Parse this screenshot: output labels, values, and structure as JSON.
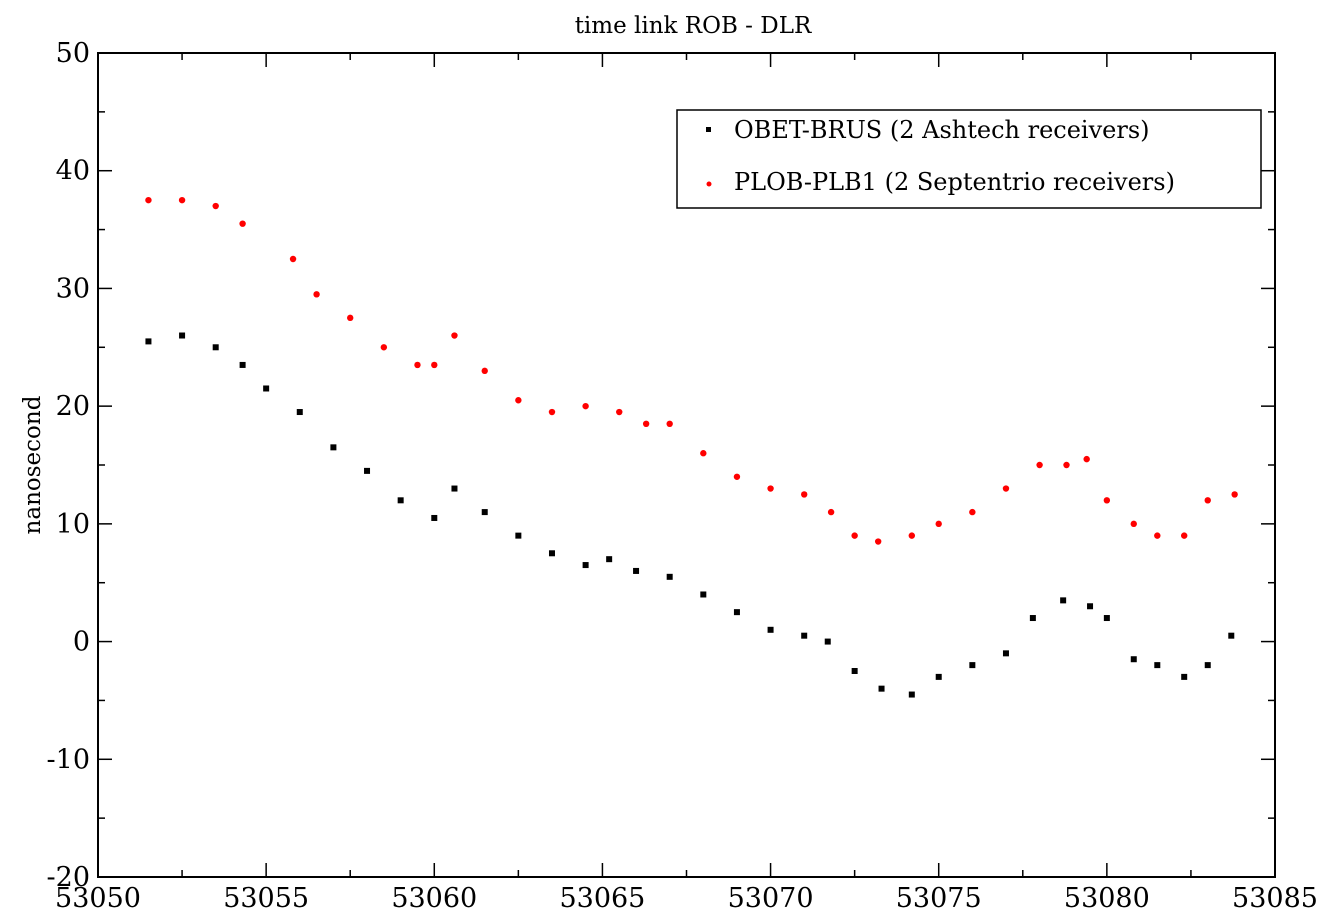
{
  "chart_data": {
    "type": "scatter",
    "title": "time link ROB - DLR",
    "xlabel": "",
    "ylabel": "nanosecond",
    "xlim": [
      53050,
      53085
    ],
    "ylim": [
      -20,
      50
    ],
    "xticks": [
      53050,
      53055,
      53060,
      53065,
      53070,
      53075,
      53080,
      53085
    ],
    "yticks": [
      -20,
      -10,
      0,
      10,
      20,
      30,
      40,
      50
    ],
    "xtick_labels": [
      "53050",
      "53055",
      "53060",
      "53065",
      "53070",
      "53075",
      "53080",
      "53085"
    ],
    "ytick_labels": [
      "-20",
      "-10",
      "0",
      "10",
      "20",
      "30",
      "40",
      "50"
    ],
    "grid": false,
    "legend_position": "top-right",
    "series": [
      {
        "name": "OBET-BRUS (2 Ashtech receivers)",
        "color": "#000000",
        "marker": "square",
        "x": [
          53051.5,
          53052.5,
          53053.5,
          53054.3,
          53055.0,
          53056.0,
          53057.0,
          53058.0,
          53059.0,
          53060.0,
          53060.6,
          53061.5,
          53062.5,
          53063.5,
          53064.5,
          53065.2,
          53066.0,
          53067.0,
          53068.0,
          53069.0,
          53070.0,
          53071.0,
          53071.7,
          53072.5,
          53073.3,
          53074.2,
          53075.0,
          53076.0,
          53077.0,
          53077.8,
          53078.7,
          53079.5,
          53080.0,
          53080.8,
          53081.5,
          53082.3,
          53083.0,
          53083.7
        ],
        "y": [
          25.5,
          26,
          25,
          23.5,
          21.5,
          19.5,
          16.5,
          14.5,
          12,
          10.5,
          13,
          11,
          9,
          7.5,
          6.5,
          7,
          6,
          5.5,
          4,
          2.5,
          1,
          0.5,
          0,
          -2.5,
          -4,
          -4.5,
          -3,
          -2,
          -1,
          2,
          3.5,
          3,
          2,
          -1.5,
          -2,
          -3,
          -2,
          0.5
        ]
      },
      {
        "name": "PLOB-PLB1 (2 Septentrio receivers)",
        "color": "#ff0000",
        "marker": "circle",
        "x": [
          53051.5,
          53052.5,
          53053.5,
          53054.3,
          53055.8,
          53056.5,
          53057.5,
          53058.5,
          53059.5,
          53060.0,
          53060.6,
          53061.5,
          53062.5,
          53063.5,
          53064.5,
          53065.5,
          53066.3,
          53067.0,
          53068.0,
          53069.0,
          53070.0,
          53071.0,
          53071.8,
          53072.5,
          53073.2,
          53074.2,
          53075.0,
          53076.0,
          53077.0,
          53078.0,
          53078.8,
          53079.4,
          53080.0,
          53080.8,
          53081.5,
          53082.3,
          53083.0,
          53083.8
        ],
        "y": [
          37.5,
          37.5,
          37,
          35.5,
          32.5,
          29.5,
          27.5,
          25,
          23.5,
          23.5,
          26,
          23,
          20.5,
          19.5,
          20,
          19.5,
          18.5,
          18.5,
          16,
          14,
          13,
          12.5,
          11,
          9,
          8.5,
          9,
          10,
          11,
          13,
          15,
          15,
          15.5,
          12,
          10,
          9,
          9,
          12,
          12.5
        ]
      }
    ]
  }
}
